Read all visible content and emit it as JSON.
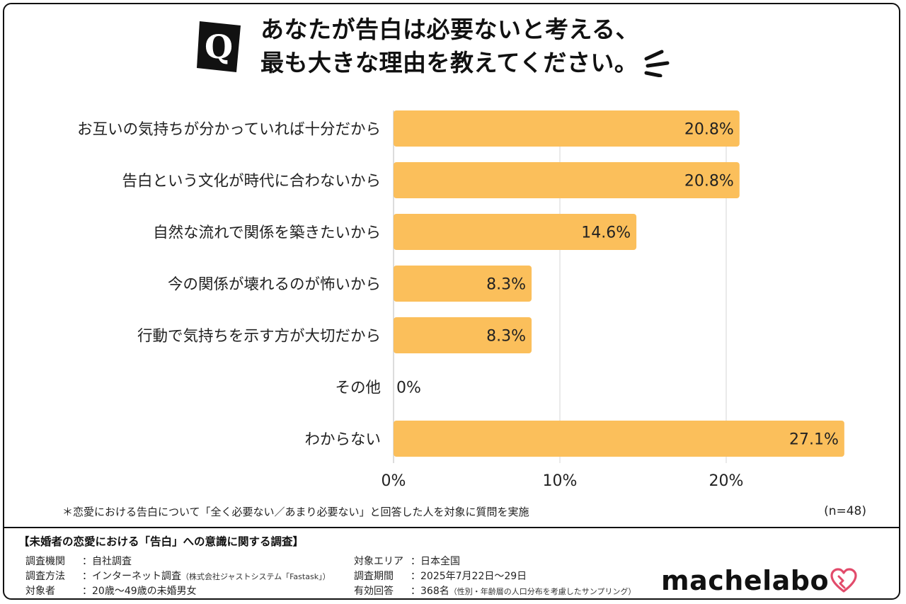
{
  "header": {
    "q_letter": "Q",
    "title_line1": "あなたが告白は必要ないと考える、",
    "title_line2": "最も大きな理由を教えてください。"
  },
  "chart_data": {
    "type": "bar",
    "orientation": "horizontal",
    "categories": [
      "お互いの気持ちが分かっていれば十分だから",
      "告白という文化が時代に合わないから",
      "自然な流れで関係を築きたいから",
      "今の関係が壊れるのが怖いから",
      "行動で気持ちを示す方が大切だから",
      "その他",
      "わからない"
    ],
    "values": [
      20.8,
      20.8,
      14.6,
      8.3,
      8.3,
      0,
      27.1
    ],
    "value_labels": [
      "20.8%",
      "20.8%",
      "14.6%",
      "8.3%",
      "8.3%",
      "0%",
      "27.1%"
    ],
    "x_ticks": [
      0,
      10,
      20
    ],
    "x_tick_labels": [
      "0%",
      "10%",
      "20%"
    ],
    "xlim": [
      0,
      27.1
    ],
    "grid": true,
    "bar_color": "#fbbf5b",
    "grid_color": "#e3e3e3"
  },
  "notes": {
    "footnote": "＊恋愛における告白について「全く必要ない／あまり必要ない」と回答した人を対象に質問を実施",
    "n": "(n=48)"
  },
  "survey": {
    "title": "【未婚者の恋愛における「告白」への意識に関する調査】",
    "org_label": "調査機関",
    "org_value": "：自社調査",
    "method_label": "調査方法",
    "method_value": "：インターネット調査",
    "method_note": "（株式会社ジャストシステム「Fastask」）",
    "target_label": "対象者",
    "target_value": "：20歳～49歳の未婚男女",
    "area_label": "対象エリア",
    "area_value": "：日本全国",
    "period_label": "調査期間",
    "period_value": "：2025年7月22日～29日",
    "responses_label": "有効回答",
    "responses_value": "：368名",
    "responses_note": "（性別・年齢層の人口分布を考慮したサンプリング）"
  },
  "logo": {
    "text": "machelabo",
    "icon": "heart-icon"
  }
}
